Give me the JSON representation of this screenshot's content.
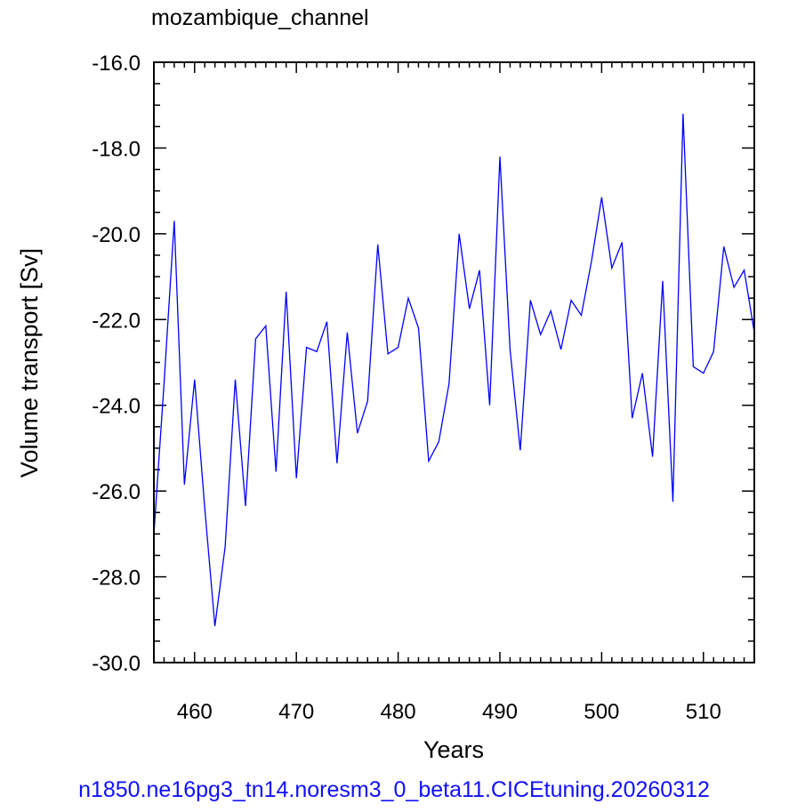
{
  "chart_data": {
    "type": "line",
    "title": "mozambique_channel",
    "xlabel": "Years",
    "ylabel": "Volume transport [Sv]",
    "footer": "n1850.ne16pg3_tn14.noresm3_0_beta11.CICEtuning.20260312",
    "xlim": [
      456,
      515
    ],
    "ylim": [
      -30,
      -16
    ],
    "x_ticks": [
      460,
      470,
      480,
      490,
      500,
      510
    ],
    "x_tick_labels": [
      "460",
      "470",
      "480",
      "490",
      "500",
      "510"
    ],
    "y_ticks": [
      -30,
      -28,
      -26,
      -24,
      -22,
      -20,
      -18,
      -16
    ],
    "y_tick_labels": [
      "-30.0",
      "-28.0",
      "-26.0",
      "-24.0",
      "-22.0",
      "-20.0",
      "-18.0",
      "-16.0"
    ],
    "grid": false,
    "line_color": "#0000ff",
    "series": [
      {
        "x": [
          456,
          457,
          458,
          459,
          460,
          461,
          462,
          463,
          464,
          465,
          466,
          467,
          468,
          469,
          470,
          471,
          472,
          473,
          474,
          475,
          476,
          477,
          478,
          479,
          480,
          481,
          482,
          483,
          484,
          485,
          486,
          487,
          488,
          489,
          490,
          491,
          492,
          493,
          494,
          495,
          496,
          497,
          498,
          499,
          500,
          501,
          502,
          503,
          504,
          505,
          506,
          507,
          508,
          509,
          510,
          511,
          512,
          513,
          514,
          515
        ],
        "values": [
          -27.0,
          -23.5,
          -19.7,
          -25.85,
          -23.4,
          -26.4,
          -29.15,
          -27.3,
          -23.4,
          -26.35,
          -22.45,
          -22.15,
          -25.55,
          -21.35,
          -25.7,
          -22.65,
          -22.75,
          -22.05,
          -25.35,
          -22.3,
          -24.65,
          -23.9,
          -20.25,
          -22.8,
          -22.65,
          -21.5,
          -22.2,
          -25.3,
          -24.85,
          -23.5,
          -20.0,
          -21.75,
          -20.85,
          -24.0,
          -18.2,
          -22.7,
          -25.05,
          -21.55,
          -22.35,
          -21.8,
          -22.7,
          -21.55,
          -21.9,
          -20.65,
          -19.15,
          -20.8,
          -20.2,
          -24.3,
          -23.25,
          -25.2,
          -21.1,
          -26.25,
          -17.2,
          -23.1,
          -23.25,
          -22.75,
          -20.3,
          -21.25,
          -20.85,
          -22.3
        ]
      }
    ]
  }
}
